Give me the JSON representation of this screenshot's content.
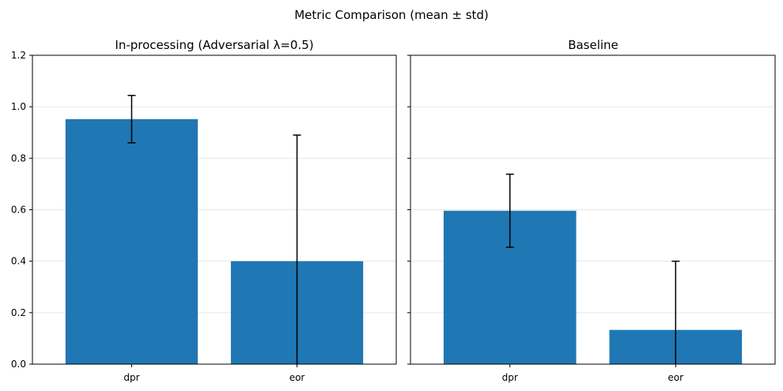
{
  "figure": {
    "suptitle": "Metric Comparison (mean ± std)"
  },
  "style": {
    "bar_color": "#1f77b4",
    "error_color": "#000000",
    "grid_color": "#e6e6e6"
  },
  "chart_data": [
    {
      "type": "bar",
      "title": "In-processing (Adversarial λ=0.5)",
      "categories": [
        "dpr",
        "eor"
      ],
      "values": [
        0.952,
        0.4
      ],
      "errors": [
        0.092,
        0.49
      ],
      "ylim": [
        0,
        1.2
      ],
      "yticks": [
        "0.0",
        "0.2",
        "0.4",
        "0.6",
        "0.8",
        "1.0",
        "1.2"
      ],
      "grid": "y",
      "xlabel": "",
      "ylabel": ""
    },
    {
      "type": "bar",
      "title": "Baseline",
      "categories": [
        "dpr",
        "eor"
      ],
      "values": [
        0.596,
        0.133
      ],
      "errors": [
        0.142,
        0.267
      ],
      "ylim": [
        0,
        1.2
      ],
      "yticks": [
        "0.0",
        "0.2",
        "0.4",
        "0.6",
        "0.8",
        "1.0",
        "1.2"
      ],
      "grid": "y",
      "xlabel": "",
      "ylabel": ""
    }
  ]
}
